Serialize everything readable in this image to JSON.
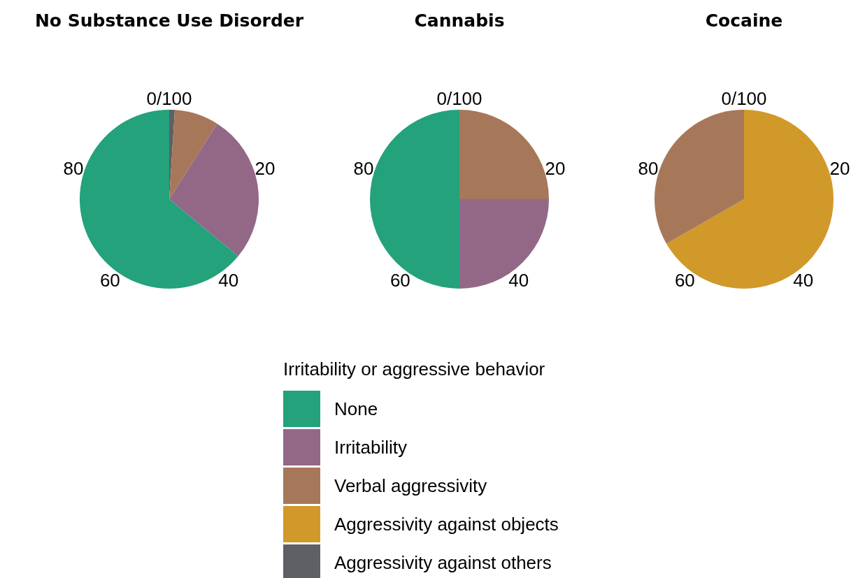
{
  "chart_data": [
    {
      "type": "pie",
      "title": "No Substance Use Disorder",
      "categories": [
        "None",
        "Irritability",
        "Verbal aggressivity",
        "Aggressivity against objects",
        "Aggressivity against others"
      ],
      "values": [
        64,
        27,
        8,
        0,
        1
      ],
      "colors": [
        "#23a27c",
        "#936887",
        "#a67859",
        "#d0992a",
        "#5e6064"
      ],
      "annotations": [
        "0/100",
        "20",
        "40",
        "60",
        "80"
      ],
      "legend": "bottom",
      "legend_title": "Irritability or aggressive behavior"
    },
    {
      "type": "pie",
      "title": "Cannabis",
      "categories": [
        null,
        null,
        null
      ],
      "values": [
        50,
        25,
        25
      ],
      "colors": [
        "#23a27c",
        "#936887",
        "#a67859"
      ],
      "annotations": [
        "0/100",
        "20",
        "40",
        "60",
        "80"
      ]
    },
    {
      "type": "pie",
      "title": "Cocaine",
      "categories": [
        null,
        null
      ],
      "values": [
        33.3,
        66.7
      ],
      "colors": [
        "#a67859",
        "#d0992a"
      ],
      "annotations": [
        "0/100",
        "20",
        "40",
        "60",
        "80"
      ]
    }
  ]
}
